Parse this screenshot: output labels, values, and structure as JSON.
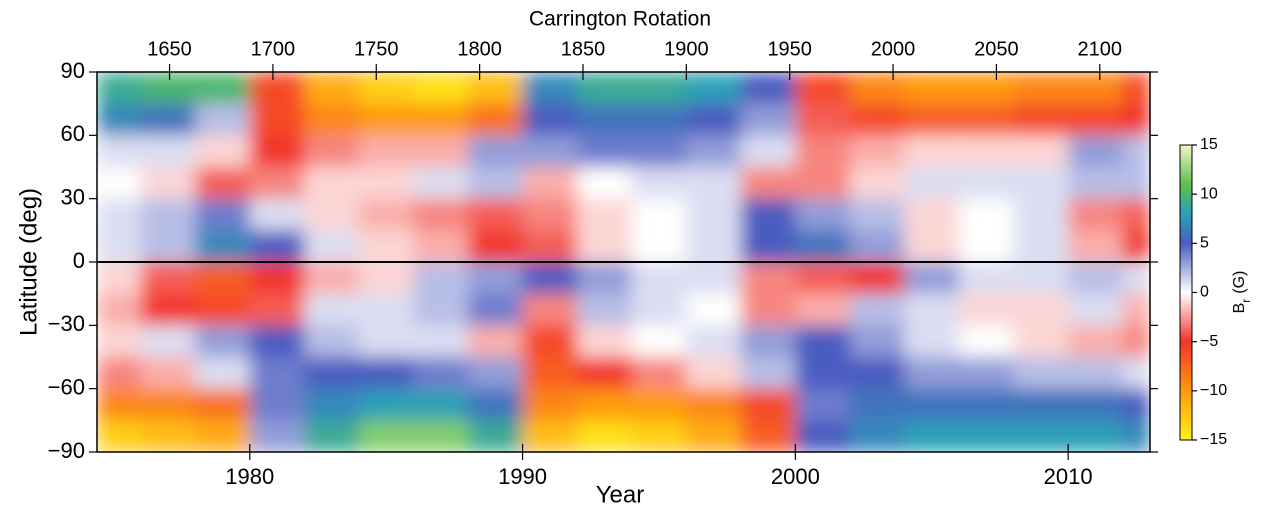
{
  "chart_data": {
    "type": "heatmap",
    "top_axis_label": "Carrington Rotation",
    "x_label": "Year",
    "y_label": "Latitude (deg)",
    "colorbar_label_main": "B",
    "colorbar_label_sub": "r",
    "colorbar_label_unit": "(G)",
    "xlim": [
      1974.4,
      2013.0
    ],
    "xticks": [
      1980,
      1990,
      2000,
      2010
    ],
    "x2lim": [
      1614.9,
      2124.3
    ],
    "x2ticks": [
      1650,
      1700,
      1750,
      1800,
      1850,
      1900,
      1950,
      2000,
      2050,
      2100
    ],
    "ylim": [
      -90,
      90
    ],
    "yticks": [
      {
        "value": -90,
        "label": "−90"
      },
      {
        "value": -60,
        "label": "−60"
      },
      {
        "value": -30,
        "label": "−30"
      },
      0,
      30,
      60,
      90
    ],
    "clim": [
      -15,
      15
    ],
    "cticks": [
      {
        "value": -15,
        "label": "−15"
      },
      {
        "value": -10,
        "label": "−10"
      },
      {
        "value": -5,
        "label": "−5"
      },
      0,
      5,
      10,
      15
    ],
    "colorscale": [
      {
        "value": -15,
        "color": "#fff21a"
      },
      {
        "value": -10,
        "color": "#ff9a10"
      },
      {
        "value": -5,
        "color": "#f2342a"
      },
      {
        "value": 0,
        "color": "#ffffff"
      },
      {
        "value": 5,
        "color": "#4a5cc0"
      },
      {
        "value": 8,
        "color": "#2aa0b8"
      },
      {
        "value": 11,
        "color": "#5cc04c"
      },
      {
        "value": 15,
        "color": "#f2f5c8"
      }
    ],
    "x_bins": [
      1974.4,
      1976,
      1978,
      1980,
      1982,
      1984,
      1986,
      1988,
      1990,
      1992,
      1994,
      1996,
      1998,
      2000,
      2002,
      2004,
      2006,
      2008,
      2010,
      2012,
      2013.0
    ],
    "y_bins": [
      90,
      75,
      60,
      45,
      30,
      15,
      0,
      -15,
      -30,
      -45,
      -60,
      -75,
      -90
    ],
    "z": [
      [
        9,
        10,
        10,
        -6,
        -11,
        -13,
        -14,
        -12,
        7,
        9,
        9,
        8,
        5,
        -6,
        -9,
        -10,
        -10,
        -9,
        -9,
        -6
      ],
      [
        7,
        6,
        2,
        -6,
        -9,
        -10,
        -10,
        -8,
        5,
        6,
        6,
        5,
        3,
        -4,
        -6,
        -7,
        -7,
        -6,
        -6,
        -5
      ],
      [
        1,
        1,
        -1,
        -5,
        -3,
        -2,
        -2,
        3,
        3,
        4,
        4,
        3,
        1,
        -3,
        -2,
        -1,
        -1,
        -1,
        3,
        2
      ],
      [
        0,
        -1,
        -4,
        -3,
        -1,
        -1,
        1,
        2,
        -2,
        0,
        1,
        1,
        -3,
        -3,
        -1,
        1,
        1,
        1,
        2,
        2
      ],
      [
        1,
        2,
        4,
        1,
        -1,
        -2,
        -3,
        -4,
        -3,
        -1,
        0,
        1,
        5,
        3,
        2,
        -1,
        0,
        1,
        -3,
        -4
      ],
      [
        1,
        2,
        7,
        5,
        1,
        -1,
        -2,
        -5,
        -4,
        -1,
        0,
        1,
        5,
        6,
        3,
        -1,
        0,
        1,
        -2,
        -5
      ],
      [
        -1,
        -4,
        -7,
        -5,
        -2,
        -1,
        2,
        3,
        5,
        3,
        1,
        1,
        -3,
        -4,
        -5,
        3,
        1,
        1,
        2,
        1
      ],
      [
        -2,
        -5,
        -6,
        -4,
        1,
        1,
        2,
        4,
        -3,
        2,
        1,
        0,
        -3,
        -2,
        2,
        1,
        -1,
        -1,
        1,
        -2
      ],
      [
        -1,
        1,
        3,
        5,
        2,
        1,
        1,
        -2,
        -6,
        -1,
        0,
        1,
        3,
        5,
        3,
        1,
        0,
        -1,
        -2,
        -3
      ],
      [
        -3,
        -2,
        1,
        4,
        5,
        5,
        4,
        3,
        -7,
        -5,
        -3,
        -1,
        2,
        5,
        5,
        3,
        3,
        2,
        2,
        1
      ],
      [
        -9,
        -9,
        -8,
        4,
        7,
        8,
        8,
        6,
        -9,
        -10,
        -10,
        -9,
        -6,
        4,
        6,
        6,
        6,
        6,
        6,
        5
      ],
      [
        -13,
        -12,
        -11,
        3,
        9,
        12,
        12,
        9,
        -12,
        -14,
        -13,
        -11,
        -7,
        5,
        7,
        8,
        8,
        8,
        8,
        7
      ]
    ],
    "zero_line": true
  }
}
